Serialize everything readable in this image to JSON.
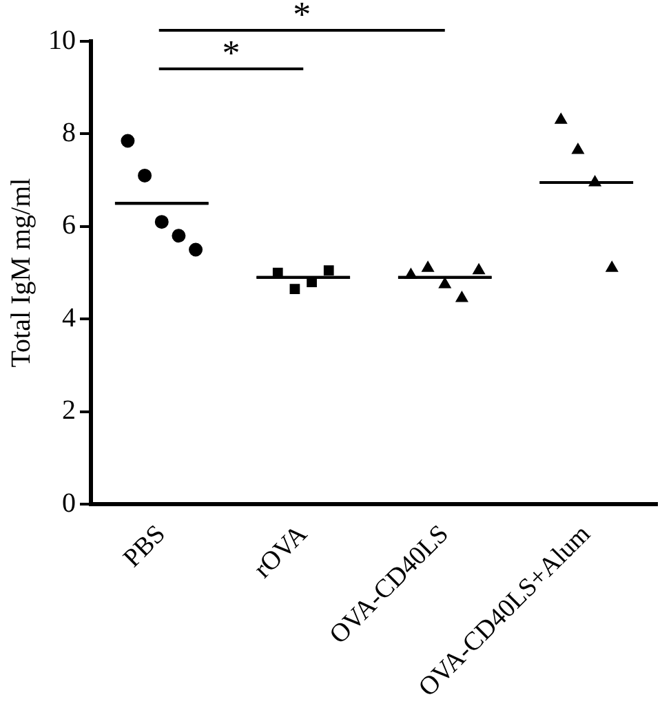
{
  "chart_data": {
    "type": "scatter",
    "ylabel": "Total IgM mg/ml",
    "categories": [
      "PBS",
      "rOVA",
      "OVA-CD40LS",
      "OVA-CD40LS+Alum"
    ],
    "ylim": [
      0,
      10
    ],
    "yticks": [
      0,
      2,
      4,
      6,
      8,
      10
    ],
    "grid": false,
    "legend": false,
    "series": [
      {
        "color": "#000000",
        "marker": "circle",
        "x": [
          "PBS",
          "PBS",
          "PBS",
          "PBS",
          "PBS"
        ],
        "values": [
          7.85,
          7.1,
          6.1,
          5.8,
          5.5
        ]
      },
      {
        "color": "#000000",
        "marker": "square",
        "x": [
          "rOVA",
          "rOVA",
          "rOVA",
          "rOVA"
        ],
        "values": [
          5.0,
          4.65,
          4.8,
          5.05
        ]
      },
      {
        "color": "#000000",
        "marker": "triangle",
        "x": [
          "OVA-CD40LS",
          "OVA-CD40LS",
          "OVA-CD40LS",
          "OVA-CD40LS",
          "OVA-CD40LS"
        ],
        "values": [
          4.95,
          5.1,
          4.75,
          4.45,
          5.05
        ]
      },
      {
        "color": "#000000",
        "marker": "triangle",
        "x": [
          "OVA-CD40LS+Alum",
          "OVA-CD40LS+Alum",
          "OVA-CD40LS+Alum",
          "OVA-CD40LS+Alum"
        ],
        "values": [
          8.3,
          7.65,
          6.95,
          5.1
        ]
      },
      {
        "type": "box",
        "color": "#000000",
        "boxes": [
          {
            "low": 6.5,
            "q1": 6.5,
            "median": 6.5,
            "q3": 6.5,
            "high": 6.5
          },
          {
            "low": 4.9,
            "q1": 4.9,
            "median": 4.9,
            "q3": 4.9,
            "high": 4.9
          },
          {
            "low": 4.9,
            "q1": 4.9,
            "median": 4.9,
            "q3": 4.9,
            "high": 4.9
          },
          {
            "low": 6.95,
            "q1": 6.95,
            "median": 6.95,
            "q3": 6.95,
            "high": 6.95
          }
        ]
      }
    ],
    "annotations": [
      "*",
      "*"
    ]
  }
}
